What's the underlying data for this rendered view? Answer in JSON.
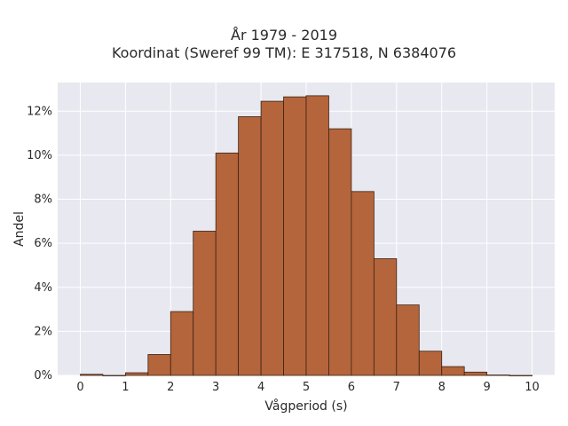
{
  "chart_data": {
    "type": "bar",
    "title": "År 1979 - 2019",
    "subtitle": "Koordinat (Sweref 99 TM): E 317518, N 6384076",
    "xlabel": "Vågperiod (s)",
    "ylabel": "Andel",
    "bin_width": 0.5,
    "bin_starts": [
      0,
      0.5,
      1,
      1.5,
      2,
      2.5,
      3,
      3.5,
      4,
      4.5,
      5,
      5.5,
      6,
      6.5,
      7,
      7.5,
      8,
      8.5,
      9,
      9.5
    ],
    "values": [
      0.05,
      0.0,
      0.12,
      0.95,
      2.9,
      6.55,
      10.1,
      11.75,
      12.45,
      12.65,
      12.7,
      11.2,
      8.35,
      5.3,
      3.2,
      1.1,
      0.4,
      0.15,
      0.02,
      0.0
    ],
    "x_ticks": [
      0,
      1,
      2,
      3,
      4,
      5,
      6,
      7,
      8,
      9,
      10
    ],
    "y_ticks": [
      0,
      2,
      4,
      6,
      8,
      10,
      12
    ],
    "y_tick_labels": [
      "0%",
      "2%",
      "4%",
      "6%",
      "8%",
      "10%",
      "12%"
    ],
    "xlim": [
      -0.5,
      10.5
    ],
    "ylim": [
      0,
      13.3
    ],
    "grid": true,
    "colors": {
      "bar_fill": "#b5653b",
      "bar_stroke": "#3a2214",
      "plot_bg": "#e8e8f0",
      "grid": "#ffffff",
      "text": "#2a2a2a"
    }
  }
}
